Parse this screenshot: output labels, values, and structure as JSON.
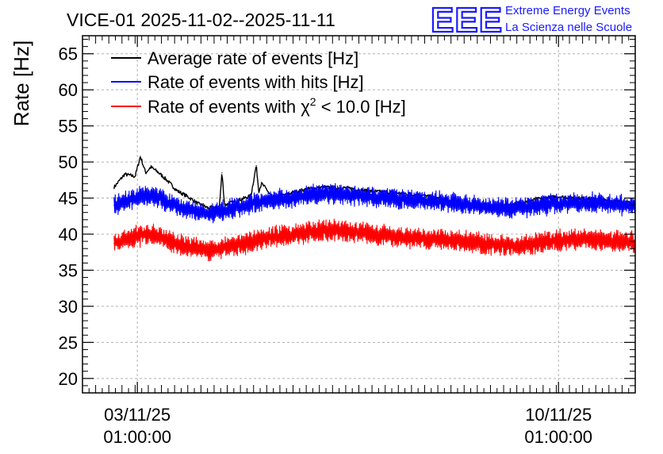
{
  "chart_data": {
    "type": "line",
    "title": "VICE-01 2025-11-02--2025-11-11",
    "ylabel": "Rate [Hz]",
    "xlabel": "",
    "ylim": [
      18,
      67.5
    ],
    "yticks": [
      20,
      25,
      30,
      35,
      40,
      45,
      50,
      55,
      60,
      65
    ],
    "grid": true,
    "legend_position": "top-left",
    "x_unit": "days since 2025-11-02 00:00",
    "xlim": [
      0.0,
      10.5
    ],
    "xticks": [
      {
        "x": 1.0417,
        "date": "03/11/25",
        "time": "01:00:00"
      },
      {
        "x": 9.0417,
        "date": "10/11/25",
        "time": "01:00:00"
      }
    ],
    "series": [
      {
        "name": "Average rate of events [Hz]",
        "color": "#000000",
        "x": [
          0.6,
          0.8,
          1.0,
          1.1,
          1.2,
          1.3,
          1.45,
          1.6,
          1.8,
          2.0,
          2.2,
          2.4,
          2.6,
          2.65,
          2.7,
          2.8,
          3.0,
          3.2,
          3.3,
          3.35,
          3.4,
          3.5,
          3.6,
          3.8,
          4.0,
          4.3,
          4.6,
          5.0,
          5.4,
          5.8,
          6.2,
          6.6,
          7.0,
          7.4,
          7.8,
          8.2,
          8.6,
          9.0,
          9.4,
          9.8,
          10.2,
          10.4,
          10.5
        ],
        "values": [
          46.5,
          48.3,
          48.0,
          50.8,
          48.5,
          49.3,
          48.5,
          47.5,
          46.0,
          45.2,
          44.2,
          43.6,
          43.8,
          48.5,
          44.0,
          44.3,
          44.8,
          45.3,
          49.5,
          46.0,
          47.0,
          46.2,
          45.0,
          45.3,
          45.8,
          46.3,
          46.5,
          46.4,
          46.0,
          45.8,
          45.6,
          45.2,
          44.5,
          44.0,
          43.8,
          44.2,
          44.8,
          45.2,
          45.0,
          44.8,
          44.5,
          44.3,
          44.2
        ]
      },
      {
        "name": "Rate of events with hits [Hz]",
        "color": "#0000ff",
        "x": [
          0.6,
          0.8,
          1.0,
          1.2,
          1.4,
          1.6,
          1.8,
          2.0,
          2.2,
          2.4,
          2.6,
          2.8,
          3.0,
          3.2,
          3.4,
          3.6,
          3.8,
          4.0,
          4.3,
          4.6,
          5.0,
          5.4,
          5.8,
          6.2,
          6.6,
          7.0,
          7.4,
          7.8,
          8.2,
          8.6,
          9.0,
          9.4,
          9.8,
          10.2,
          10.5
        ],
        "values": [
          44.0,
          44.5,
          45.0,
          45.5,
          45.2,
          44.5,
          43.8,
          43.5,
          43.0,
          42.8,
          43.2,
          43.5,
          43.8,
          44.2,
          44.6,
          44.8,
          44.9,
          45.0,
          45.4,
          45.6,
          45.5,
          45.2,
          45.0,
          44.8,
          44.6,
          44.4,
          44.0,
          43.8,
          43.6,
          43.9,
          44.2,
          44.4,
          44.3,
          44.0,
          43.8
        ],
        "band": 2.4
      },
      {
        "name": "Rate of events with χ² < 10.0 [Hz]",
        "color": "#ff0000",
        "x": [
          0.6,
          0.8,
          1.0,
          1.2,
          1.4,
          1.6,
          1.8,
          2.0,
          2.2,
          2.4,
          2.6,
          2.8,
          3.0,
          3.2,
          3.4,
          3.6,
          3.8,
          4.0,
          4.3,
          4.6,
          5.0,
          5.4,
          5.8,
          6.2,
          6.6,
          7.0,
          7.4,
          7.8,
          8.2,
          8.6,
          9.0,
          9.4,
          9.8,
          10.2,
          10.5
        ],
        "values": [
          38.7,
          39.2,
          39.6,
          40.1,
          39.9,
          39.2,
          38.6,
          38.3,
          38.0,
          37.7,
          38.0,
          38.3,
          38.6,
          39.0,
          39.4,
          39.6,
          39.7,
          39.9,
          40.3,
          40.5,
          40.4,
          40.1,
          39.8,
          39.5,
          39.3,
          39.2,
          38.8,
          38.6,
          38.4,
          38.7,
          39.1,
          39.3,
          39.2,
          39.0,
          38.8
        ],
        "band": 2.6
      }
    ]
  },
  "legend": {
    "items": [
      {
        "text": "Average rate of events [Hz]",
        "color": "#000000"
      },
      {
        "text": "Rate of events with hits [Hz]",
        "color": "#0000ff"
      },
      {
        "prefix": "Rate of events with ",
        "chi": "χ",
        "sup": "2",
        "suffix": " < 10.0 [Hz]",
        "color": "#ff0000"
      }
    ]
  },
  "logo": {
    "big": "EEE",
    "line1": "Extreme Energy Events",
    "line2": "La Scienza nelle Scuole",
    "color": "#1a1aff"
  }
}
